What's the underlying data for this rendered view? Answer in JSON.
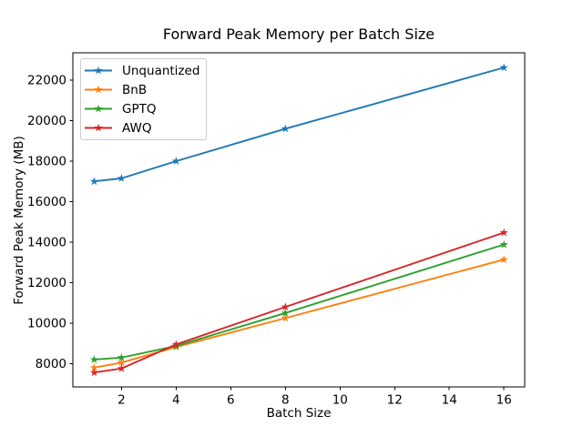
{
  "chart_data": {
    "type": "line",
    "title": "Forward Peak Memory per Batch Size",
    "xlabel": "Batch Size",
    "ylabel": "Forward Peak Memory (MB)",
    "x": [
      1,
      2,
      4,
      8,
      16
    ],
    "series": [
      {
        "name": "Unquantized",
        "color": "#1f77b4",
        "values": [
          17000,
          17150,
          18000,
          19600,
          22620
        ]
      },
      {
        "name": "BnB",
        "color": "#ff7f0e",
        "values": [
          7800,
          8050,
          8820,
          10250,
          13140
        ]
      },
      {
        "name": "GPTQ",
        "color": "#2ca02c",
        "values": [
          8200,
          8300,
          8870,
          10500,
          13880
        ]
      },
      {
        "name": "AWQ",
        "color": "#d62728",
        "values": [
          7560,
          7760,
          8950,
          10800,
          14470
        ]
      }
    ],
    "xticks": [
      2,
      4,
      6,
      8,
      10,
      12,
      14,
      16
    ],
    "yticks": [
      8000,
      10000,
      12000,
      14000,
      16000,
      18000,
      20000,
      22000
    ],
    "xlim": [
      0.22,
      16.76
    ],
    "ylim": [
      6850,
      23350
    ],
    "marker": "star",
    "grid": false,
    "legend_position": "upper left",
    "axis_color": "#000000",
    "legend_border_color": "#cccccc",
    "background_color": "#ffffff"
  }
}
